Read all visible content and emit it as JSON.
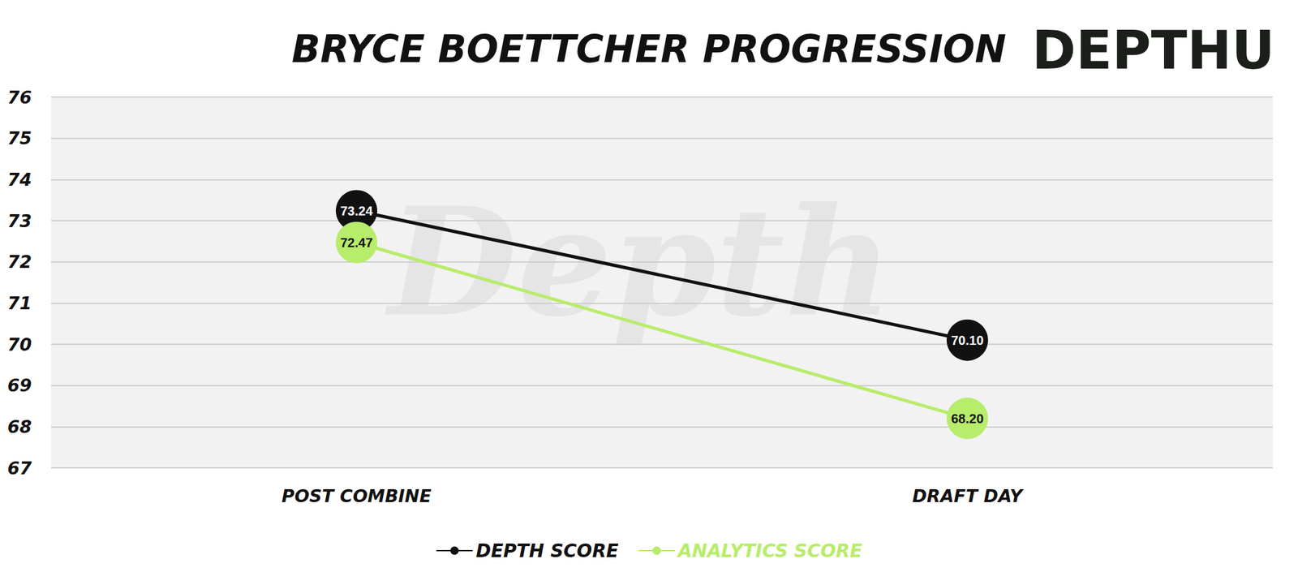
{
  "chart_data": {
    "type": "line",
    "title": "BRYCE BOETTCHER PROGRESSION",
    "logo": "DEPTHU",
    "watermark": "Depth",
    "categories": [
      "POST COMBINE",
      "DRAFT DAY"
    ],
    "series": [
      {
        "name": "DEPTH SCORE",
        "color": "#111111",
        "values": [
          73.24,
          70.1
        ],
        "value_labels": [
          "73.24",
          "70.10"
        ],
        "marker": "circle"
      },
      {
        "name": "ANALYTICS SCORE",
        "color": "#b8ec6b",
        "values": [
          72.47,
          68.2
        ],
        "value_labels": [
          "72.47",
          "68.20"
        ],
        "marker": "circle"
      }
    ],
    "ylim": [
      67,
      76
    ],
    "yticks": [
      67,
      68,
      69,
      70,
      71,
      72,
      73,
      74,
      75,
      76
    ],
    "grid": true,
    "legend": "bottom",
    "data_labels": true
  }
}
